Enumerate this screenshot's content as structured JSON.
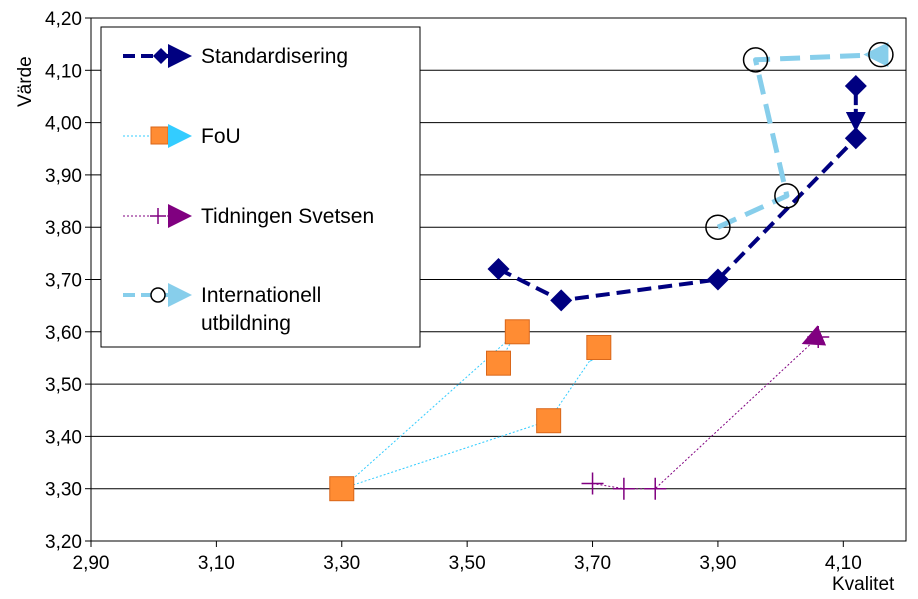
{
  "chart_data": {
    "type": "scatter",
    "xlabel": "Kvalitet",
    "ylabel": "Värde",
    "xlim": [
      2.9,
      4.2
    ],
    "ylim": [
      3.2,
      4.2
    ],
    "x_ticks": [
      "2,90",
      "3,10",
      "3,30",
      "3,50",
      "3,70",
      "3,90",
      "4,10"
    ],
    "y_ticks": [
      "3,20",
      "3,30",
      "3,40",
      "3,50",
      "3,60",
      "3,70",
      "3,80",
      "3,90",
      "4,00",
      "4,10",
      "4,20"
    ],
    "grid": "horizontal",
    "legend_position": "top-left",
    "series": [
      {
        "name": "Standardisering",
        "color": "#000080",
        "marker": "diamond",
        "line": "dashed-thick",
        "points": [
          [
            3.55,
            3.72
          ],
          [
            3.65,
            3.66
          ],
          [
            3.9,
            3.7
          ],
          [
            4.12,
            3.97
          ],
          [
            4.12,
            4.07
          ]
        ],
        "arrow_to": [
          4.12,
          3.99
        ]
      },
      {
        "name": "FoU",
        "color": "#33CCFF",
        "marker_color": "#FF8C33",
        "marker": "square",
        "line": "dotted-thin",
        "points": [
          [
            3.55,
            3.54
          ],
          [
            3.58,
            3.6
          ],
          [
            3.3,
            3.3
          ],
          [
            3.63,
            3.43
          ],
          [
            3.71,
            3.57
          ]
        ],
        "arrow_to": [
          3.7,
          3.55
        ]
      },
      {
        "name": "Tidningen Svetsen",
        "color": "#800080",
        "marker": "plus",
        "line": "dotted-thin",
        "points": [
          [
            3.7,
            3.31
          ],
          [
            3.75,
            3.3
          ],
          [
            3.8,
            3.3
          ],
          [
            4.06,
            3.59
          ]
        ],
        "arrow_to": [
          4.04,
          3.58
        ]
      },
      {
        "name": "Internationell utbildning",
        "legend_lines": [
          "Internationell",
          "utbildning"
        ],
        "color": "#87CEEB",
        "marker": "circle",
        "line": "dashed-thick",
        "points": [
          [
            3.9,
            3.8
          ],
          [
            4.01,
            3.86
          ],
          [
            3.96,
            4.12
          ],
          [
            4.16,
            4.13
          ]
        ],
        "arrow_to": [
          4.14,
          4.13
        ]
      }
    ]
  }
}
